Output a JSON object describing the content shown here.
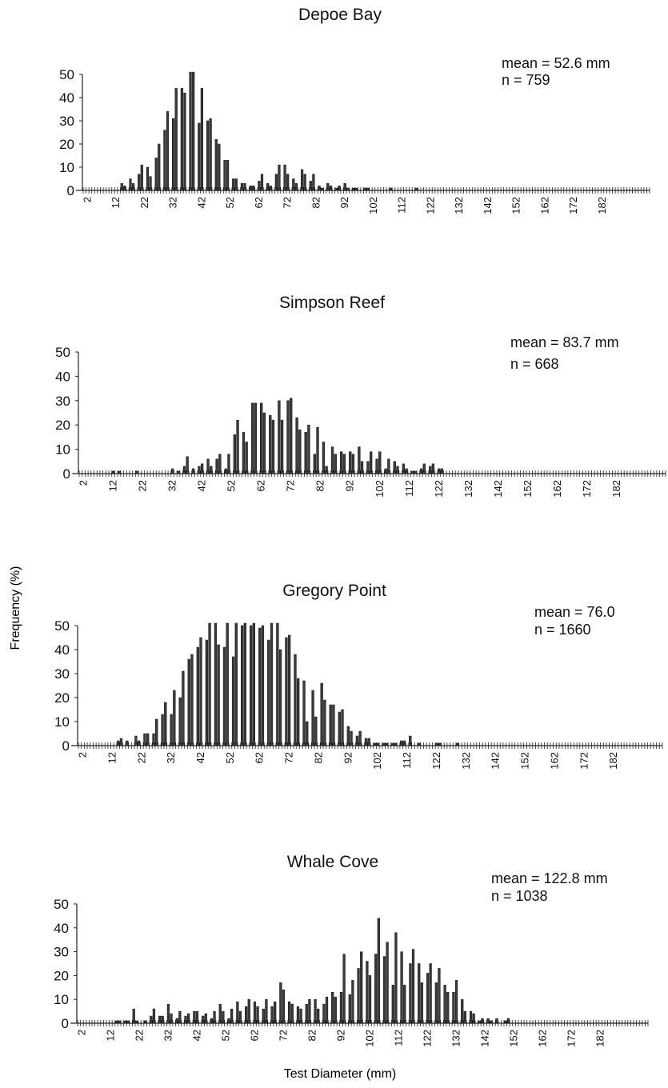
{
  "figure": {
    "ylabel": "Frequency (%)",
    "xlabel": "Test Diameter (mm)"
  },
  "colors": {
    "bar": "#3a3a3a",
    "axis": "#222222",
    "text": "#111111"
  },
  "chart_data": [
    {
      "type": "bar",
      "title": "Depoe Bay",
      "stat_lines": [
        "mean = 52.6 mm",
        "n = 759"
      ],
      "xlabel": "",
      "ylabel": "",
      "x_range": [
        1,
        199
      ],
      "ylim": [
        0,
        50
      ],
      "yticks": [
        0,
        10,
        20,
        30,
        40,
        50
      ],
      "xticks": [
        2,
        12,
        22,
        32,
        42,
        52,
        62,
        72,
        82,
        92,
        102,
        112,
        122,
        132,
        142,
        152,
        162,
        172,
        182
      ],
      "grid": false,
      "values": [
        [
          14,
          3
        ],
        [
          15,
          2
        ],
        [
          17,
          5
        ],
        [
          18,
          3
        ],
        [
          20,
          7
        ],
        [
          21,
          11
        ],
        [
          23,
          10
        ],
        [
          24,
          6
        ],
        [
          26,
          14
        ],
        [
          27,
          20
        ],
        [
          29,
          26
        ],
        [
          30,
          34
        ],
        [
          32,
          31
        ],
        [
          33,
          44
        ],
        [
          35,
          44
        ],
        [
          36,
          42
        ],
        [
          38,
          51
        ],
        [
          39,
          51
        ],
        [
          41,
          29
        ],
        [
          42,
          44
        ],
        [
          44,
          30
        ],
        [
          45,
          31
        ],
        [
          47,
          22
        ],
        [
          48,
          20
        ],
        [
          50,
          13
        ],
        [
          51,
          13
        ],
        [
          53,
          5
        ],
        [
          54,
          5
        ],
        [
          56,
          3
        ],
        [
          57,
          3
        ],
        [
          59,
          2
        ],
        [
          60,
          2
        ],
        [
          62,
          4
        ],
        [
          63,
          7
        ],
        [
          65,
          3
        ],
        [
          66,
          2
        ],
        [
          68,
          7
        ],
        [
          69,
          11
        ],
        [
          71,
          11
        ],
        [
          72,
          7
        ],
        [
          74,
          5
        ],
        [
          75,
          3
        ],
        [
          77,
          9
        ],
        [
          78,
          7
        ],
        [
          80,
          4
        ],
        [
          81,
          7
        ],
        [
          83,
          2
        ],
        [
          84,
          1
        ],
        [
          86,
          3
        ],
        [
          87,
          2
        ],
        [
          89,
          1
        ],
        [
          90,
          2
        ],
        [
          92,
          3
        ],
        [
          93,
          1
        ],
        [
          95,
          1
        ],
        [
          96,
          1
        ],
        [
          99,
          1
        ],
        [
          100,
          1
        ],
        [
          108,
          1
        ],
        [
          117,
          1
        ]
      ]
    },
    {
      "type": "bar",
      "title": "Simpson Reef",
      "stat_lines": [
        "mean = 83.7 mm",
        "n = 668"
      ],
      "xlabel": "",
      "ylabel": "",
      "x_range": [
        1,
        199
      ],
      "ylim": [
        0,
        50
      ],
      "yticks": [
        0,
        10,
        20,
        30,
        40,
        50
      ],
      "xticks": [
        2,
        12,
        22,
        32,
        42,
        52,
        62,
        72,
        82,
        92,
        102,
        112,
        122,
        132,
        142,
        152,
        162,
        172,
        182
      ],
      "grid": false,
      "values": [
        [
          12,
          1
        ],
        [
          14,
          1
        ],
        [
          20,
          1
        ],
        [
          32,
          2
        ],
        [
          34,
          1
        ],
        [
          36,
          3
        ],
        [
          37,
          7
        ],
        [
          39,
          2
        ],
        [
          41,
          3
        ],
        [
          42,
          4
        ],
        [
          44,
          6
        ],
        [
          45,
          3
        ],
        [
          47,
          6
        ],
        [
          48,
          8
        ],
        [
          50,
          2
        ],
        [
          51,
          8
        ],
        [
          53,
          16
        ],
        [
          54,
          22
        ],
        [
          56,
          17
        ],
        [
          57,
          13
        ],
        [
          59,
          29
        ],
        [
          60,
          29
        ],
        [
          62,
          29
        ],
        [
          63,
          25
        ],
        [
          65,
          24
        ],
        [
          66,
          22
        ],
        [
          68,
          30
        ],
        [
          69,
          22
        ],
        [
          71,
          30
        ],
        [
          72,
          31
        ],
        [
          74,
          23
        ],
        [
          75,
          18
        ],
        [
          77,
          17
        ],
        [
          78,
          20
        ],
        [
          80,
          8
        ],
        [
          81,
          19
        ],
        [
          83,
          13
        ],
        [
          84,
          3
        ],
        [
          86,
          11
        ],
        [
          87,
          8
        ],
        [
          89,
          9
        ],
        [
          90,
          8
        ],
        [
          92,
          9
        ],
        [
          93,
          8
        ],
        [
          95,
          11
        ],
        [
          96,
          5
        ],
        [
          98,
          5
        ],
        [
          99,
          9
        ],
        [
          101,
          6
        ],
        [
          102,
          9
        ],
        [
          104,
          2
        ],
        [
          105,
          6
        ],
        [
          107,
          5
        ],
        [
          108,
          3
        ],
        [
          110,
          4
        ],
        [
          111,
          2
        ],
        [
          113,
          1
        ],
        [
          114,
          1
        ],
        [
          116,
          2
        ],
        [
          117,
          4
        ],
        [
          119,
          3
        ],
        [
          120,
          4
        ],
        [
          122,
          2
        ],
        [
          123,
          2
        ]
      ]
    },
    {
      "type": "bar",
      "title": "Gregory Point",
      "stat_lines": [
        "mean = 76.0",
        "n = 1660"
      ],
      "xlabel": "",
      "ylabel": "",
      "x_range": [
        1,
        199
      ],
      "ylim": [
        0,
        50
      ],
      "yticks": [
        0,
        10,
        20,
        30,
        40,
        50
      ],
      "xticks": [
        2,
        12,
        22,
        32,
        42,
        52,
        62,
        72,
        82,
        92,
        102,
        112,
        122,
        132,
        142,
        152,
        162,
        172,
        182
      ],
      "grid": false,
      "values": [
        [
          14,
          2
        ],
        [
          15,
          3
        ],
        [
          17,
          2
        ],
        [
          20,
          4
        ],
        [
          21,
          2
        ],
        [
          23,
          5
        ],
        [
          24,
          5
        ],
        [
          26,
          5
        ],
        [
          27,
          11
        ],
        [
          29,
          13
        ],
        [
          30,
          18
        ],
        [
          32,
          13
        ],
        [
          33,
          23
        ],
        [
          35,
          20
        ],
        [
          36,
          31
        ],
        [
          38,
          36
        ],
        [
          39,
          38
        ],
        [
          41,
          41
        ],
        [
          42,
          45
        ],
        [
          44,
          44
        ],
        [
          45,
          51
        ],
        [
          47,
          51
        ],
        [
          48,
          42
        ],
        [
          50,
          41
        ],
        [
          51,
          51
        ],
        [
          53,
          37
        ],
        [
          54,
          51
        ],
        [
          56,
          50
        ],
        [
          57,
          51
        ],
        [
          59,
          50
        ],
        [
          60,
          51
        ],
        [
          62,
          49
        ],
        [
          63,
          50
        ],
        [
          65,
          44
        ],
        [
          66,
          51
        ],
        [
          68,
          51
        ],
        [
          69,
          40
        ],
        [
          71,
          45
        ],
        [
          72,
          46
        ],
        [
          74,
          38
        ],
        [
          75,
          28
        ],
        [
          77,
          27
        ],
        [
          78,
          10
        ],
        [
          80,
          23
        ],
        [
          81,
          12
        ],
        [
          83,
          26
        ],
        [
          84,
          19
        ],
        [
          86,
          17
        ],
        [
          87,
          17
        ],
        [
          89,
          14
        ],
        [
          90,
          15
        ],
        [
          92,
          8
        ],
        [
          93,
          6
        ],
        [
          95,
          4
        ],
        [
          96,
          6
        ],
        [
          98,
          3
        ],
        [
          99,
          3
        ],
        [
          101,
          1
        ],
        [
          102,
          1
        ],
        [
          104,
          1
        ],
        [
          105,
          1
        ],
        [
          107,
          1
        ],
        [
          108,
          1
        ],
        [
          110,
          2
        ],
        [
          111,
          2
        ],
        [
          113,
          4
        ],
        [
          116,
          1
        ],
        [
          122,
          1
        ],
        [
          123,
          1
        ],
        [
          129,
          1
        ]
      ]
    },
    {
      "type": "bar",
      "title": "Whale Cove",
      "stat_lines": [
        "mean = 122.8 mm",
        "n = 1038"
      ],
      "xlabel": "",
      "ylabel": "",
      "x_range": [
        1,
        199
      ],
      "ylim": [
        0,
        50
      ],
      "yticks": [
        0,
        10,
        20,
        30,
        40,
        50
      ],
      "xticks": [
        2,
        12,
        22,
        32,
        42,
        52,
        62,
        72,
        82,
        92,
        102,
        112,
        122,
        132,
        142,
        152,
        162,
        172,
        182
      ],
      "grid": false,
      "values": [
        [
          14,
          1
        ],
        [
          15,
          1
        ],
        [
          17,
          1
        ],
        [
          18,
          1
        ],
        [
          20,
          6
        ],
        [
          21,
          1
        ],
        [
          24,
          1
        ],
        [
          26,
          3
        ],
        [
          27,
          6
        ],
        [
          29,
          3
        ],
        [
          30,
          3
        ],
        [
          32,
          8
        ],
        [
          33,
          4
        ],
        [
          35,
          2
        ],
        [
          36,
          5
        ],
        [
          38,
          3
        ],
        [
          39,
          4
        ],
        [
          41,
          5
        ],
        [
          42,
          5
        ],
        [
          44,
          3
        ],
        [
          45,
          4
        ],
        [
          47,
          2
        ],
        [
          48,
          5
        ],
        [
          50,
          8
        ],
        [
          51,
          5
        ],
        [
          53,
          2
        ],
        [
          54,
          6
        ],
        [
          56,
          9
        ],
        [
          57,
          5
        ],
        [
          59,
          7
        ],
        [
          60,
          10
        ],
        [
          62,
          9
        ],
        [
          63,
          7
        ],
        [
          65,
          6
        ],
        [
          66,
          10
        ],
        [
          68,
          7
        ],
        [
          69,
          9
        ],
        [
          71,
          17
        ],
        [
          72,
          14
        ],
        [
          74,
          9
        ],
        [
          75,
          8
        ],
        [
          77,
          7
        ],
        [
          78,
          6
        ],
        [
          80,
          8
        ],
        [
          81,
          10
        ],
        [
          83,
          10
        ],
        [
          84,
          6
        ],
        [
          86,
          8
        ],
        [
          87,
          11
        ],
        [
          89,
          13
        ],
        [
          90,
          11
        ],
        [
          92,
          13
        ],
        [
          93,
          29
        ],
        [
          95,
          12
        ],
        [
          96,
          18
        ],
        [
          98,
          23
        ],
        [
          99,
          30
        ],
        [
          101,
          26
        ],
        [
          102,
          20
        ],
        [
          104,
          29
        ],
        [
          105,
          44
        ],
        [
          107,
          28
        ],
        [
          108,
          34
        ],
        [
          110,
          16
        ],
        [
          111,
          38
        ],
        [
          113,
          30
        ],
        [
          114,
          16
        ],
        [
          116,
          25
        ],
        [
          117,
          31
        ],
        [
          119,
          25
        ],
        [
          120,
          17
        ],
        [
          122,
          21
        ],
        [
          123,
          25
        ],
        [
          125,
          17
        ],
        [
          126,
          23
        ],
        [
          128,
          16
        ],
        [
          129,
          13
        ],
        [
          131,
          13
        ],
        [
          132,
          18
        ],
        [
          134,
          10
        ],
        [
          135,
          5
        ],
        [
          137,
          5
        ],
        [
          138,
          4
        ],
        [
          140,
          1
        ],
        [
          141,
          2
        ],
        [
          143,
          2
        ],
        [
          144,
          1
        ],
        [
          146,
          2
        ],
        [
          149,
          1
        ],
        [
          150,
          2
        ]
      ]
    }
  ]
}
